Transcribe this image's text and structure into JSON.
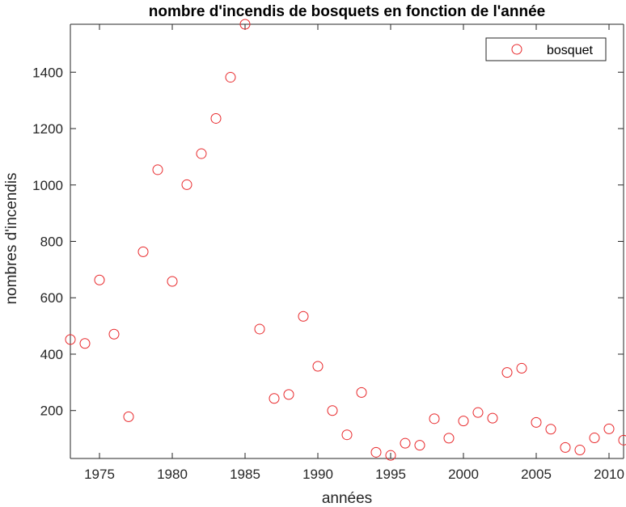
{
  "chart_data": {
    "type": "scatter",
    "title": "nombre d'incendis de bosquets en fonction de l'année",
    "xlabel": "années",
    "ylabel": "nombres d'incendis",
    "xlim": [
      1973,
      2011
    ],
    "ylim": [
      30,
      1570
    ],
    "xticks": [
      1975,
      1980,
      1985,
      1990,
      1995,
      2000,
      2005,
      2010
    ],
    "yticks": [
      200,
      400,
      600,
      800,
      1000,
      1200,
      1400
    ],
    "grid": false,
    "legend_position": "top-right",
    "series": [
      {
        "name": "bosquet",
        "color": "#e8282b",
        "marker": "circle-open",
        "x": [
          1973,
          1974,
          1975,
          1976,
          1977,
          1978,
          1979,
          1980,
          1981,
          1982,
          1983,
          1984,
          1985,
          1986,
          1987,
          1988,
          1989,
          1990,
          1991,
          1992,
          1993,
          1994,
          1995,
          1996,
          1997,
          1998,
          1999,
          2000,
          2001,
          2002,
          2003,
          2004,
          2005,
          2006,
          2007,
          2008,
          2009,
          2010,
          2011
        ],
        "y": [
          452,
          438,
          663,
          471,
          178,
          763,
          1054,
          658,
          1001,
          1111,
          1236,
          1382,
          1570,
          489,
          243,
          257,
          534,
          357,
          200,
          114,
          264,
          52,
          41,
          84,
          77,
          171,
          102,
          163,
          193,
          173,
          335,
          350,
          158,
          134,
          69,
          60,
          103,
          135,
          95
        ]
      }
    ]
  }
}
